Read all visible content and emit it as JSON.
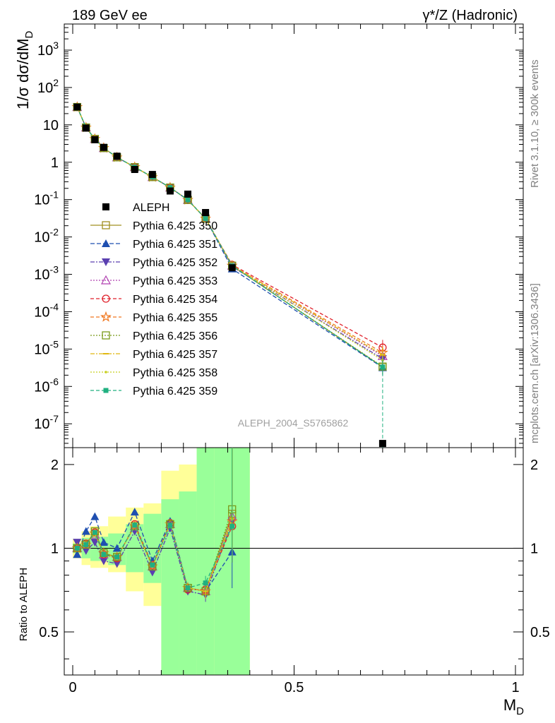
{
  "header": {
    "left_title": "189 GeV ee",
    "right_title": "γ*/Z (Hadronic)"
  },
  "side_labels": {
    "rivet": "Rivet 3.1.10, ≥ 300k events",
    "mcplots": "mcplots.cern.ch [arXiv:1306.3436]"
  },
  "watermark": "ALEPH_2004_S5765862",
  "chart_data": [
    {
      "type": "scatter",
      "panel": "main",
      "ylabel": "1/σ dσ/dM_D",
      "yscale": "log",
      "ylim": [
        2.3e-08,
        5000
      ],
      "xlim": [
        -0.02,
        1.02
      ],
      "yticks": [
        {
          "v": 1000.0,
          "t": "10^3"
        },
        {
          "v": 100.0,
          "t": "10^2"
        },
        {
          "v": 10,
          "t": "10"
        },
        {
          "v": 1,
          "t": "1"
        },
        {
          "v": 0.1,
          "t": "10^-1"
        },
        {
          "v": 0.01,
          "t": "10^-2"
        },
        {
          "v": 0.001,
          "t": "10^-3"
        },
        {
          "v": 0.0001,
          "t": "10^-4"
        },
        {
          "v": 1e-05,
          "t": "10^-5"
        },
        {
          "v": 1e-06,
          "t": "10^-6"
        },
        {
          "v": 1e-07,
          "t": "10^-7"
        }
      ],
      "legend_position": "left-middle",
      "x": [
        0.01,
        0.03,
        0.05,
        0.07,
        0.1,
        0.14,
        0.18,
        0.22,
        0.26,
        0.3,
        0.36,
        0.7
      ],
      "data": {
        "name": "ALEPH",
        "values": [
          30,
          8.2,
          4.0,
          2.5,
          1.45,
          0.64,
          0.47,
          0.17,
          0.14,
          0.045,
          0.0015,
          2.5e-08
        ]
      },
      "series": [
        {
          "name": "Pythia 6.425 350",
          "color": "#a09020",
          "marker": "square-open",
          "dash": "none",
          "values": [
            30,
            8.5,
            4.2,
            2.4,
            1.35,
            0.74,
            0.4,
            0.21,
            0.098,
            0.031,
            0.0017,
            3.3e-06
          ]
        },
        {
          "name": "Pythia 6.425 351",
          "color": "#1f4fb0",
          "marker": "triangle-up",
          "dash": "6,3",
          "values": [
            30,
            8.5,
            4.2,
            2.4,
            1.35,
            0.74,
            0.4,
            0.21,
            0.098,
            0.031,
            0.0014,
            3.2e-06
          ]
        },
        {
          "name": "Pythia 6.425 352",
          "color": "#5a3fb0",
          "marker": "triangle-down",
          "dash": "6,2,2,2",
          "values": [
            30,
            8.5,
            4.2,
            2.4,
            1.35,
            0.74,
            0.4,
            0.21,
            0.098,
            0.031,
            0.0016,
            5.5e-06
          ]
        },
        {
          "name": "Pythia 6.425 353",
          "color": "#b040b0",
          "marker": "triangle-open",
          "dash": "2,2",
          "values": [
            30,
            8.5,
            4.2,
            2.4,
            1.35,
            0.74,
            0.4,
            0.21,
            0.098,
            0.031,
            0.0017,
            6.5e-06
          ]
        },
        {
          "name": "Pythia 6.425 354",
          "color": "#e0202a",
          "marker": "circle-open",
          "dash": "5,3",
          "values": [
            30,
            8.5,
            4.2,
            2.4,
            1.35,
            0.74,
            0.4,
            0.21,
            0.098,
            0.031,
            0.0018,
            1.1e-05
          ]
        },
        {
          "name": "Pythia 6.425 355",
          "color": "#f07820",
          "marker": "star-open",
          "dash": "5,3",
          "values": [
            30,
            8.5,
            4.2,
            2.4,
            1.35,
            0.74,
            0.4,
            0.21,
            0.098,
            0.031,
            0.0017,
            8e-06
          ]
        },
        {
          "name": "Pythia 6.425 356",
          "color": "#7a9a1a",
          "marker": "square-open",
          "dash": "2,2",
          "values": [
            30,
            8.5,
            4.2,
            2.4,
            1.35,
            0.74,
            0.4,
            0.21,
            0.098,
            0.031,
            0.0017,
            3.4e-06
          ]
        },
        {
          "name": "Pythia 6.425 357",
          "color": "#e0b810",
          "marker": "dash",
          "dash": "6,2,2,2",
          "values": [
            30,
            8.5,
            4.2,
            2.4,
            1.35,
            0.74,
            0.4,
            0.21,
            0.098,
            0.031,
            0.0017,
            7e-06
          ]
        },
        {
          "name": "Pythia 6.425 358",
          "color": "#c8d020",
          "marker": "dot",
          "dash": "2,2",
          "values": [
            30,
            8.5,
            4.2,
            2.4,
            1.35,
            0.74,
            0.4,
            0.21,
            0.098,
            0.031,
            0.0017,
            5e-06
          ]
        },
        {
          "name": "Pythia 6.425 359",
          "color": "#20b080",
          "marker": "square",
          "dash": "5,3",
          "values": [
            30,
            8.5,
            4.2,
            2.4,
            1.35,
            0.74,
            0.4,
            0.21,
            0.098,
            0.031,
            0.0017,
            3.3e-06
          ]
        }
      ]
    },
    {
      "type": "line",
      "panel": "ratio",
      "xlabel": "M_D",
      "ylabel": "Ratio to ALEPH",
      "yscale": "log",
      "ylim": [
        0.35,
        2.3
      ],
      "xlim": [
        -0.02,
        1.02
      ],
      "xticks": [
        0,
        0.5,
        1
      ],
      "yticks": [
        0.5,
        1,
        2
      ],
      "bins": [
        0,
        0.02,
        0.04,
        0.06,
        0.08,
        0.12,
        0.16,
        0.2,
        0.24,
        0.28,
        0.32,
        0.4
      ],
      "band_1sigma": [
        [
          0.96,
          1.04
        ],
        [
          0.92,
          1.09
        ],
        [
          0.9,
          1.12
        ],
        [
          0.9,
          1.1
        ],
        [
          0.87,
          1.13
        ],
        [
          0.82,
          1.22
        ],
        [
          0.75,
          1.33
        ],
        [
          0.35,
          1.5
        ],
        [
          0.35,
          1.6
        ],
        [
          0.35,
          2.3
        ],
        [
          0.35,
          2.3
        ]
      ],
      "band_2sigma": [
        [
          0.92,
          1.08
        ],
        [
          0.87,
          1.15
        ],
        [
          0.85,
          1.2
        ],
        [
          0.85,
          1.2
        ],
        [
          0.82,
          1.3
        ],
        [
          0.7,
          1.4
        ],
        [
          0.62,
          1.45
        ],
        [
          0.35,
          1.9
        ],
        [
          0.35,
          2.0
        ],
        [
          0.35,
          2.3
        ],
        [
          0.35,
          2.3
        ]
      ],
      "x": [
        0.01,
        0.03,
        0.05,
        0.07,
        0.1,
        0.14,
        0.18,
        0.22,
        0.26,
        0.3,
        0.36
      ],
      "series": [
        {
          "name": "Pythia 6.425 350",
          "values": [
            1.0,
            1.03,
            1.15,
            0.96,
            0.93,
            1.2,
            0.86,
            1.22,
            0.72,
            0.7,
            1.33
          ]
        },
        {
          "name": "Pythia 6.425 351",
          "values": [
            0.95,
            1.15,
            1.3,
            1.05,
            1.0,
            1.35,
            0.9,
            1.25,
            0.72,
            0.7,
            0.97
          ]
        },
        {
          "name": "Pythia 6.425 352",
          "values": [
            1.05,
            0.98,
            1.05,
            0.9,
            0.88,
            1.15,
            0.82,
            1.18,
            0.7,
            0.68,
            1.25
          ]
        },
        {
          "name": "Pythia 6.425 353",
          "values": [
            1.0,
            1.03,
            1.12,
            0.95,
            0.93,
            1.2,
            0.86,
            1.22,
            0.72,
            0.7,
            1.3
          ]
        },
        {
          "name": "Pythia 6.425 354",
          "values": [
            1.0,
            1.04,
            1.14,
            0.95,
            0.92,
            1.22,
            0.87,
            1.23,
            0.71,
            0.71,
            1.2
          ]
        },
        {
          "name": "Pythia 6.425 355",
          "values": [
            1.0,
            1.03,
            1.13,
            0.96,
            0.93,
            1.2,
            0.86,
            1.22,
            0.72,
            0.7,
            1.25
          ]
        },
        {
          "name": "Pythia 6.425 356",
          "values": [
            1.0,
            1.03,
            1.15,
            0.96,
            0.93,
            1.2,
            0.86,
            1.22,
            0.72,
            0.7,
            1.38
          ]
        },
        {
          "name": "Pythia 6.425 357",
          "values": [
            1.0,
            1.03,
            1.13,
            0.95,
            0.93,
            1.2,
            0.86,
            1.22,
            0.72,
            0.7,
            1.28
          ]
        },
        {
          "name": "Pythia 6.425 358",
          "values": [
            1.0,
            1.03,
            1.13,
            0.95,
            0.93,
            1.2,
            0.86,
            1.22,
            0.72,
            0.7,
            1.27
          ]
        },
        {
          "name": "Pythia 6.425 359",
          "values": [
            1.0,
            1.03,
            1.14,
            0.95,
            0.93,
            1.21,
            0.87,
            1.21,
            0.72,
            0.75,
            1.2
          ]
        }
      ]
    }
  ]
}
